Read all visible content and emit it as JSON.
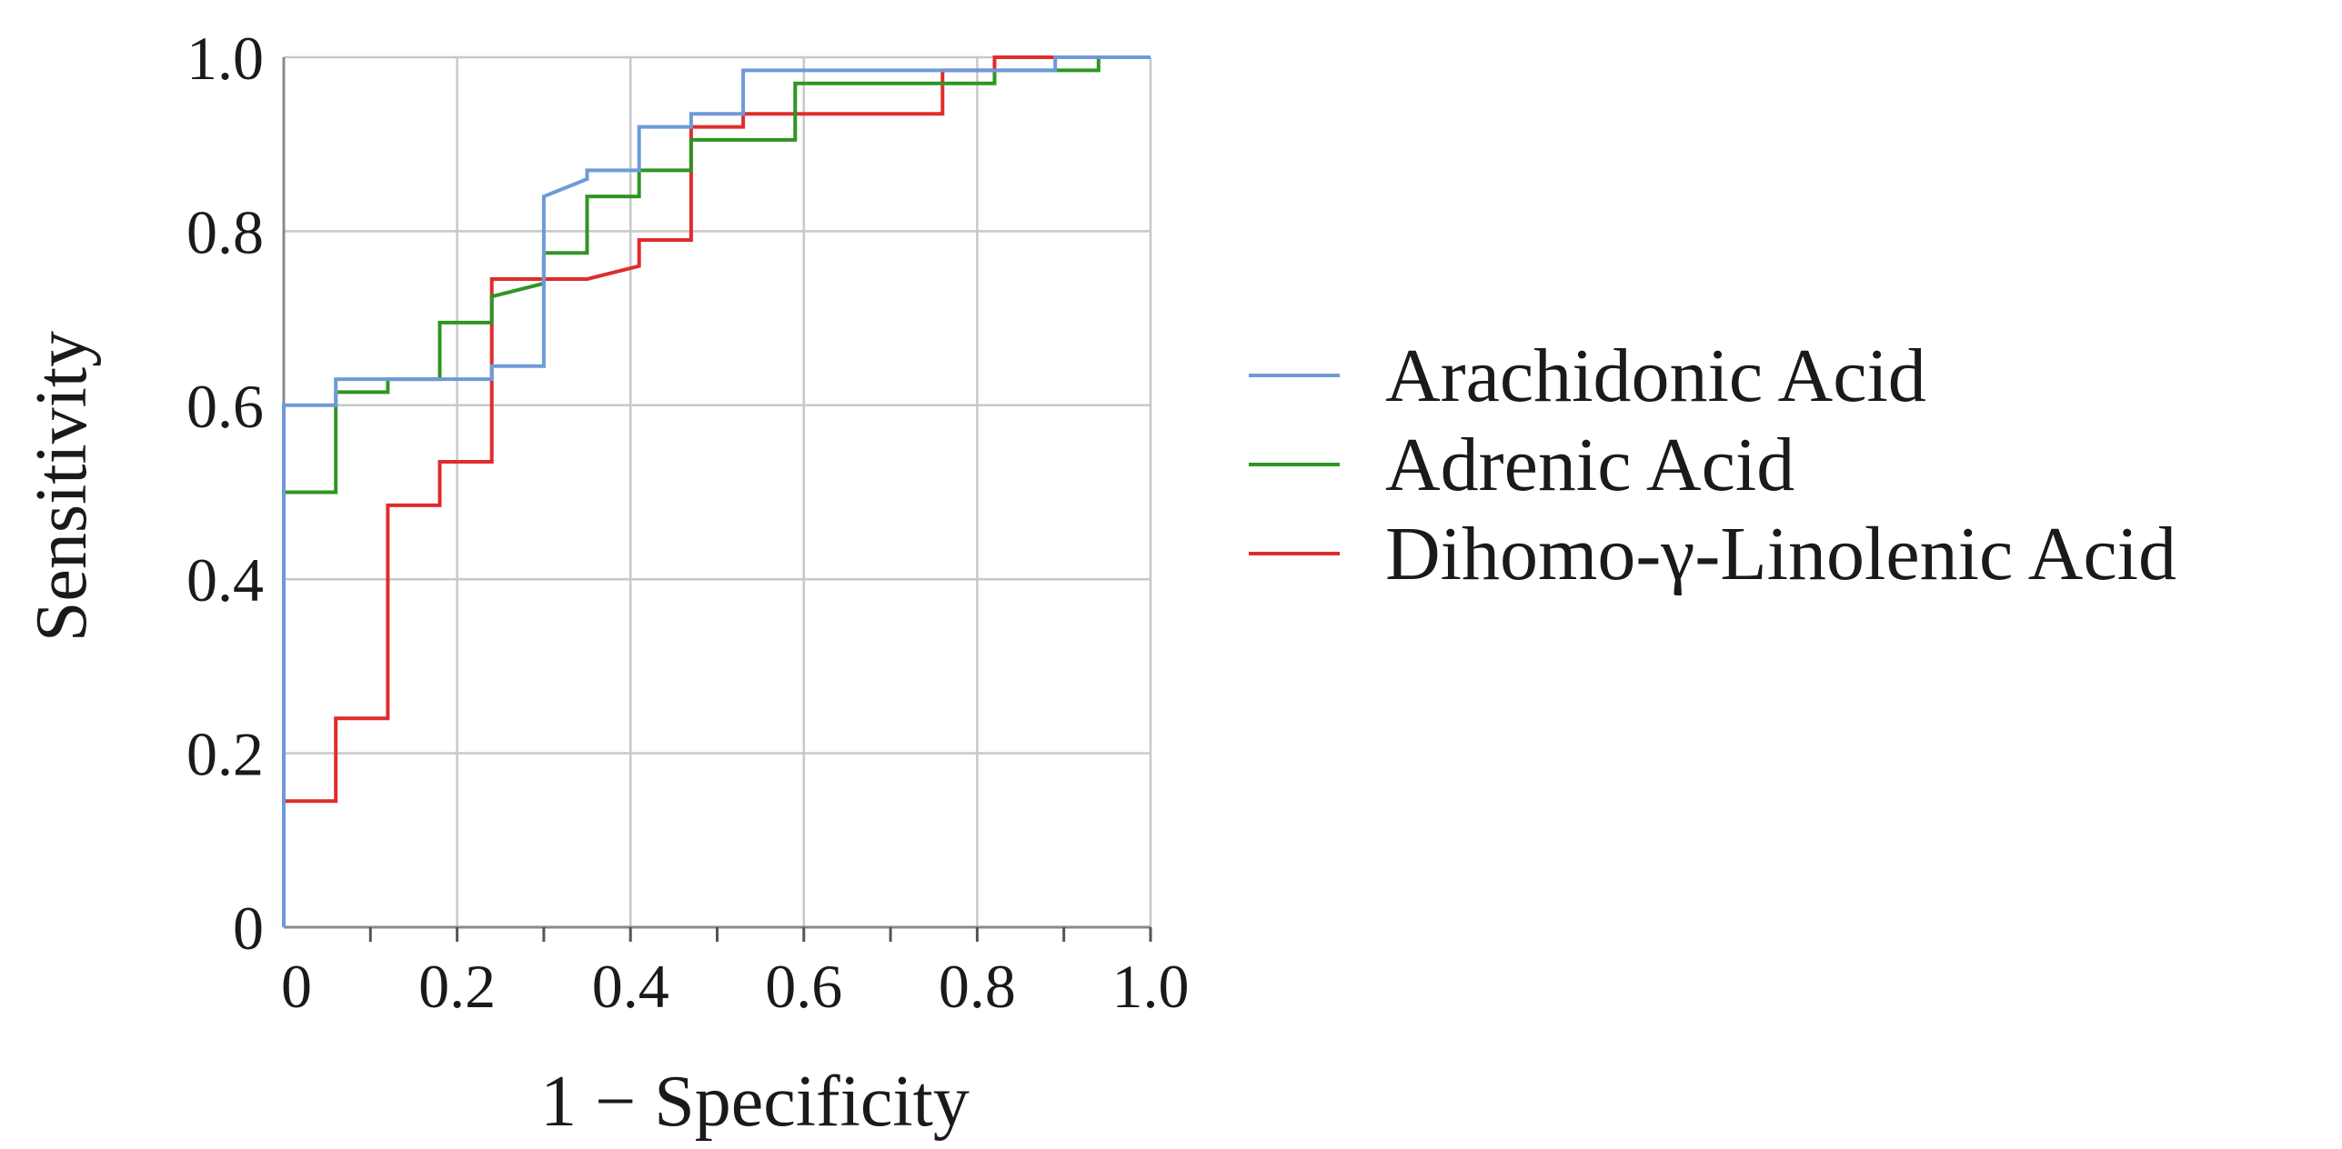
{
  "chart_data": {
    "type": "line",
    "title": "",
    "xlabel": "1 − Specificity",
    "ylabel": "Sensitivity",
    "xlim": [
      0,
      1
    ],
    "ylim": [
      0,
      1
    ],
    "grid": true,
    "legend_position": "right",
    "x_ticks": [
      {
        "value": 0,
        "label": "0"
      },
      {
        "value": 0.2,
        "label": "0.2"
      },
      {
        "value": 0.4,
        "label": "0.4"
      },
      {
        "value": 0.6,
        "label": "0.6"
      },
      {
        "value": 0.8,
        "label": "0.8"
      },
      {
        "value": 1.0,
        "label": "1.0"
      }
    ],
    "y_ticks": [
      {
        "value": 0,
        "label": "0"
      },
      {
        "value": 0.2,
        "label": "0.2"
      },
      {
        "value": 0.4,
        "label": "0.4"
      },
      {
        "value": 0.6,
        "label": "0.6"
      },
      {
        "value": 0.8,
        "label": "0.8"
      },
      {
        "value": 1.0,
        "label": "1.0"
      }
    ],
    "series": [
      {
        "name": "Arachidonic Acid",
        "color": "#6f9ad8",
        "points": [
          [
            0,
            0
          ],
          [
            0,
            0.6
          ],
          [
            0.06,
            0.6
          ],
          [
            0.06,
            0.63
          ],
          [
            0.24,
            0.63
          ],
          [
            0.24,
            0.645
          ],
          [
            0.3,
            0.645
          ],
          [
            0.3,
            0.84
          ],
          [
            0.35,
            0.86
          ],
          [
            0.35,
            0.87
          ],
          [
            0.41,
            0.87
          ],
          [
            0.41,
            0.92
          ],
          [
            0.47,
            0.92
          ],
          [
            0.47,
            0.935
          ],
          [
            0.53,
            0.935
          ],
          [
            0.53,
            0.985
          ],
          [
            0.89,
            0.985
          ],
          [
            0.89,
            1.0
          ],
          [
            1.0,
            1.0
          ]
        ]
      },
      {
        "name": "Adrenic Acid",
        "color": "#2e9622",
        "points": [
          [
            0,
            0
          ],
          [
            0,
            0.5
          ],
          [
            0.06,
            0.5
          ],
          [
            0.06,
            0.615
          ],
          [
            0.12,
            0.615
          ],
          [
            0.12,
            0.63
          ],
          [
            0.18,
            0.63
          ],
          [
            0.18,
            0.695
          ],
          [
            0.24,
            0.695
          ],
          [
            0.24,
            0.725
          ],
          [
            0.3,
            0.74
          ],
          [
            0.3,
            0.775
          ],
          [
            0.35,
            0.775
          ],
          [
            0.35,
            0.84
          ],
          [
            0.41,
            0.84
          ],
          [
            0.41,
            0.87
          ],
          [
            0.47,
            0.87
          ],
          [
            0.47,
            0.905
          ],
          [
            0.59,
            0.905
          ],
          [
            0.59,
            0.97
          ],
          [
            0.82,
            0.97
          ],
          [
            0.82,
            0.985
          ],
          [
            0.94,
            0.985
          ],
          [
            0.94,
            1.0
          ],
          [
            1.0,
            1.0
          ]
        ]
      },
      {
        "name": "Dihomo-γ-Linolenic Acid",
        "color": "#e02c2c",
        "points": [
          [
            0,
            0
          ],
          [
            0,
            0.145
          ],
          [
            0.06,
            0.145
          ],
          [
            0.06,
            0.24
          ],
          [
            0.12,
            0.24
          ],
          [
            0.12,
            0.485
          ],
          [
            0.18,
            0.485
          ],
          [
            0.18,
            0.535
          ],
          [
            0.24,
            0.535
          ],
          [
            0.24,
            0.745
          ],
          [
            0.35,
            0.745
          ],
          [
            0.41,
            0.76
          ],
          [
            0.41,
            0.79
          ],
          [
            0.47,
            0.79
          ],
          [
            0.47,
            0.92
          ],
          [
            0.53,
            0.92
          ],
          [
            0.53,
            0.935
          ],
          [
            0.76,
            0.935
          ],
          [
            0.76,
            0.985
          ],
          [
            0.82,
            0.985
          ],
          [
            0.82,
            1.0
          ],
          [
            1.0,
            1.0
          ]
        ]
      }
    ]
  }
}
